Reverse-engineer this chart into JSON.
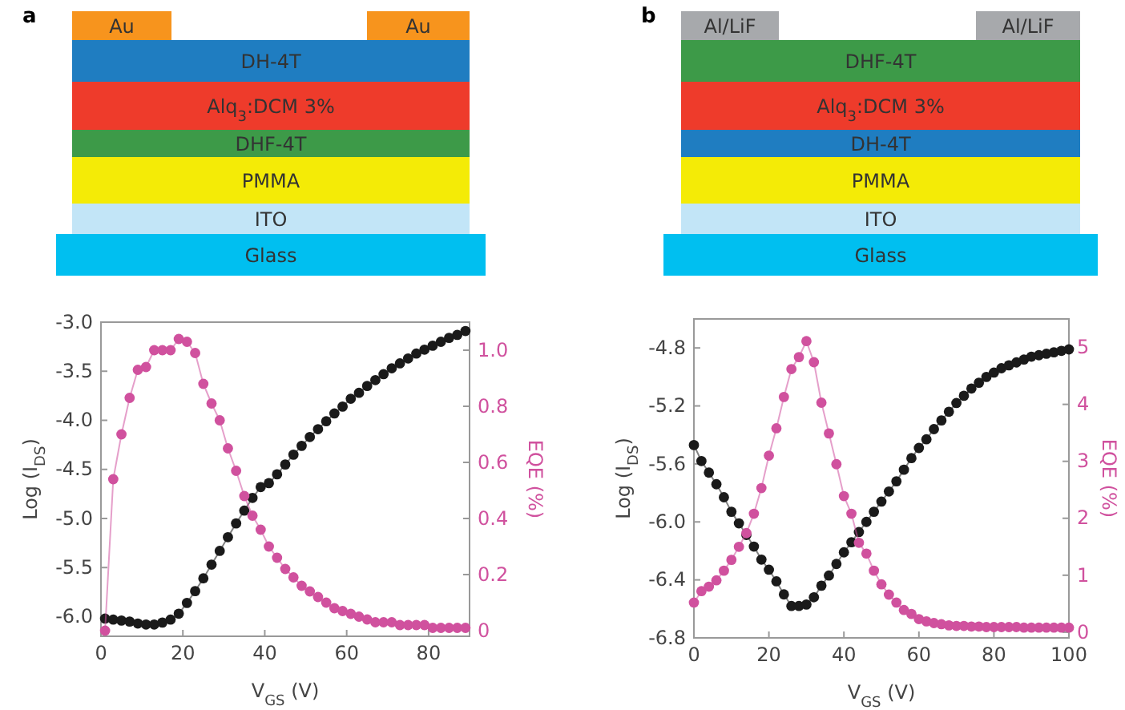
{
  "chart_data": [
    {
      "type": "line",
      "title": "a",
      "xlabel": "V$_{GS}$ (V)",
      "ylabel": "Log (I$_{DS}$)",
      "y2label": "EQE (%)",
      "marker": "circle",
      "line_style": "solid",
      "grid": false,
      "annotations": [
        "Au",
        "Au",
        "DH-4T",
        "Alq$_{3}$:DCM 3%",
        "DHF-4T",
        "PMMA",
        "ITO",
        "Glass"
      ],
      "x": [
        1,
        3,
        5,
        7,
        9,
        11,
        13,
        15,
        17,
        19,
        21,
        23,
        25,
        27,
        29,
        31,
        33,
        35,
        37,
        39,
        41,
        43,
        45,
        47,
        49,
        51,
        53,
        55,
        57,
        59,
        61,
        63,
        65,
        67,
        69,
        71,
        73,
        75,
        77,
        79,
        81,
        83,
        85,
        87,
        89
      ],
      "xlim": [
        0,
        90
      ],
      "xticks": [
        0,
        20,
        40,
        60,
        80
      ],
      "ylim": [
        -6.2,
        -3.0
      ],
      "yticks": [
        {
          "value": -6.0,
          "label": "-6.0"
        },
        {
          "value": -5.5,
          "label": "-5.5"
        },
        {
          "value": -5.0,
          "label": "-5.0"
        },
        {
          "value": -4.5,
          "label": "-4.5"
        },
        {
          "value": -4.0,
          "label": "-4.0"
        },
        {
          "value": -3.5,
          "label": "-3.5"
        },
        {
          "value": -3.0,
          "label": "-3.0"
        }
      ],
      "y2lim": [
        -0.02,
        1.1
      ],
      "y2ticks": [
        0,
        0.2,
        0.4,
        0.6,
        0.8,
        {
          "value": 1.0,
          "label": "1.0"
        }
      ],
      "series": [
        {
          "color": "#1a1a1a",
          "values": [
            -6.02,
            -6.03,
            -6.04,
            -6.05,
            -6.07,
            -6.08,
            -6.08,
            -6.06,
            -6.03,
            -5.97,
            -5.86,
            -5.74,
            -5.61,
            -5.47,
            -5.33,
            -5.19,
            -5.05,
            -4.92,
            -4.79,
            -4.68,
            -4.64,
            -4.55,
            -4.45,
            -4.35,
            -4.26,
            -4.17,
            -4.09,
            -4.01,
            -3.93,
            -3.86,
            -3.78,
            -3.72,
            -3.65,
            -3.59,
            -3.53,
            -3.47,
            -3.42,
            -3.37,
            -3.32,
            -3.28,
            -3.24,
            -3.2,
            -3.16,
            -3.13,
            -3.09
          ]
        },
        {
          "color": "#d0519e",
          "axis": "y2",
          "values": [
            0,
            0.54,
            0.7,
            0.83,
            0.93,
            0.94,
            1.0,
            1.0,
            1.0,
            1.04,
            1.03,
            0.99,
            0.88,
            0.81,
            0.75,
            0.65,
            0.57,
            0.48,
            0.41,
            0.36,
            0.3,
            0.26,
            0.22,
            0.19,
            0.16,
            0.14,
            0.12,
            0.1,
            0.08,
            0.07,
            0.06,
            0.05,
            0.04,
            0.03,
            0.03,
            0.03,
            0.02,
            0.02,
            0.02,
            0.02,
            0.01,
            0.01,
            0.01,
            0.01,
            0.01
          ]
        }
      ]
    },
    {
      "type": "line",
      "title": "b",
      "xlabel": "V$_{GS}$ (V)",
      "ylabel": "Log (I$_{DS}$)",
      "y2label": "EQE (%)",
      "marker": "circle",
      "line_style": "solid",
      "grid": false,
      "annotations": [
        "Al/LiF",
        "Al/LiF",
        "DHF-4T",
        "Alq$_{3}$:DCM 3%",
        "DH-4T",
        "PMMA",
        "ITO",
        "Glass"
      ],
      "x": [
        0,
        2,
        4,
        6,
        8,
        10,
        12,
        14,
        16,
        18,
        20,
        22,
        24,
        26,
        28,
        30,
        32,
        34,
        36,
        38,
        40,
        42,
        44,
        46,
        48,
        50,
        52,
        54,
        56,
        58,
        60,
        62,
        64,
        66,
        68,
        70,
        72,
        74,
        76,
        78,
        80,
        82,
        84,
        86,
        88,
        90,
        92,
        94,
        96,
        98,
        100
      ],
      "xlim": [
        0,
        100
      ],
      "xticks": [
        0,
        20,
        40,
        60,
        80,
        100
      ],
      "ylim": [
        -6.8,
        -4.6
      ],
      "yticks": [
        -6.8,
        -6.4,
        {
          "value": -6.0,
          "label": "-6.0"
        },
        -5.6,
        -5.2,
        -4.8
      ],
      "y2lim": [
        -0.1,
        5.5
      ],
      "y2ticks": [
        0,
        1,
        2,
        3,
        4,
        5
      ],
      "series": [
        {
          "color": "#1a1a1a",
          "values": [
            -5.47,
            -5.58,
            -5.66,
            -5.74,
            -5.83,
            -5.93,
            -6.01,
            -6.09,
            -6.17,
            -6.26,
            -6.33,
            -6.41,
            -6.5,
            -6.58,
            -6.58,
            -6.57,
            -6.52,
            -6.44,
            -6.37,
            -6.29,
            -6.21,
            -6.14,
            -6.07,
            -6.0,
            -5.93,
            -5.86,
            -5.79,
            -5.72,
            -5.64,
            -5.56,
            -5.49,
            -5.43,
            -5.36,
            -5.3,
            -5.24,
            -5.18,
            -5.13,
            -5.08,
            -5.04,
            -5.0,
            -4.97,
            -4.94,
            -4.92,
            -4.9,
            -4.88,
            -4.86,
            -4.85,
            -4.84,
            -4.83,
            -4.82,
            -4.81
          ]
        },
        {
          "color": "#d0519e",
          "axis": "y2",
          "values": [
            0.52,
            0.72,
            0.8,
            0.91,
            1.08,
            1.27,
            1.5,
            1.74,
            2.08,
            2.53,
            3.1,
            3.58,
            4.13,
            4.62,
            4.83,
            5.11,
            4.74,
            4.03,
            3.49,
            2.95,
            2.39,
            2.08,
            1.57,
            1.38,
            1.08,
            0.84,
            0.66,
            0.52,
            0.39,
            0.32,
            0.23,
            0.19,
            0.16,
            0.14,
            0.12,
            0.11,
            0.11,
            0.1,
            0.1,
            0.09,
            0.09,
            0.09,
            0.09,
            0.09,
            0.08,
            0.08,
            0.08,
            0.08,
            0.08,
            0.08,
            0.08
          ]
        }
      ]
    }
  ]
}
